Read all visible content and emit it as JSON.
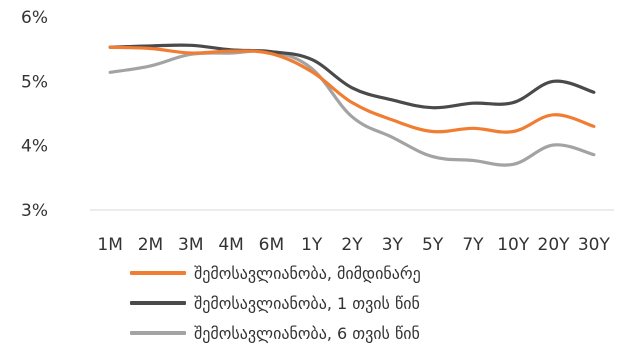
{
  "chart_data": {
    "type": "line",
    "categories": [
      "1M",
      "2M",
      "3M",
      "4M",
      "6M",
      "1Y",
      "2Y",
      "3Y",
      "5Y",
      "7Y",
      "10Y",
      "20Y",
      "30Y"
    ],
    "yticks": [
      "3%",
      "4%",
      "5%",
      "6%"
    ],
    "ylim": [
      3,
      6
    ],
    "grid": false,
    "legend_position": "bottom",
    "series": [
      {
        "name": "შემოსავლიანობა, მიმდინარე",
        "color": "#F07D32",
        "values": [
          5.53,
          5.51,
          5.44,
          5.47,
          5.43,
          5.15,
          4.67,
          4.4,
          4.22,
          4.27,
          4.22,
          4.48,
          4.3
        ]
      },
      {
        "name": "შემოსავლიანობა, 1 თვის წინ",
        "color": "#4A4A4A",
        "values": [
          5.53,
          5.55,
          5.56,
          5.49,
          5.46,
          5.34,
          4.9,
          4.71,
          4.59,
          4.66,
          4.67,
          5.0,
          4.83
        ]
      },
      {
        "name": "შემოსავლიანობა, 6 თვის წინ",
        "color": "#A3A3A3",
        "values": [
          5.14,
          5.24,
          5.42,
          5.44,
          5.46,
          5.2,
          4.45,
          4.13,
          3.83,
          3.77,
          3.71,
          4.01,
          3.86
        ]
      }
    ]
  }
}
